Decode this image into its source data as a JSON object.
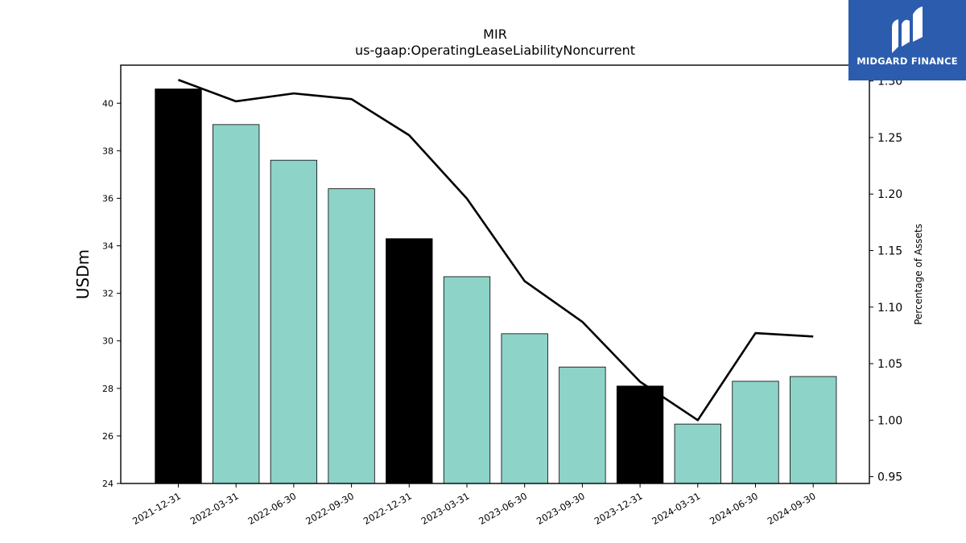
{
  "chart_data": {
    "type": "bar",
    "title": "MIR",
    "subtitle": "us-gaap:OperatingLeaseLiabilityNoncurrent",
    "ylabel": "USDm",
    "y2label": "Percentage of Assets",
    "categories": [
      "2021-12-31",
      "2022-03-31",
      "2022-06-30",
      "2022-09-30",
      "2022-12-31",
      "2023-03-31",
      "2023-06-30",
      "2023-09-30",
      "2023-12-31",
      "2024-03-31",
      "2024-06-30",
      "2024-09-30"
    ],
    "values": [
      40.6,
      39.1,
      37.6,
      36.4,
      34.3,
      32.7,
      30.3,
      28.9,
      28.1,
      26.5,
      28.3,
      28.5
    ],
    "bar_colors": [
      "#000000",
      "#8dd3c7",
      "#8dd3c7",
      "#8dd3c7",
      "#000000",
      "#8dd3c7",
      "#8dd3c7",
      "#8dd3c7",
      "#000000",
      "#8dd3c7",
      "#8dd3c7",
      "#8dd3c7"
    ],
    "line_values": [
      1.301,
      1.282,
      1.289,
      1.284,
      1.252,
      1.196,
      1.123,
      1.087,
      1.034,
      1.0,
      1.077,
      1.074
    ],
    "ylim": [
      24,
      41.6
    ],
    "y2lim": [
      0.944,
      1.314
    ],
    "yticks": [
      24,
      26,
      28,
      30,
      32,
      34,
      36,
      38,
      40
    ],
    "y2ticks": [
      "0.95",
      "1.00",
      "1.05",
      "1.10",
      "1.15",
      "1.20",
      "1.25",
      "1.30"
    ],
    "grid": false
  },
  "logo": {
    "text": "MIDGARD FINANCE",
    "icon": "midgard-logo-icon",
    "color": "#2b5cae"
  }
}
